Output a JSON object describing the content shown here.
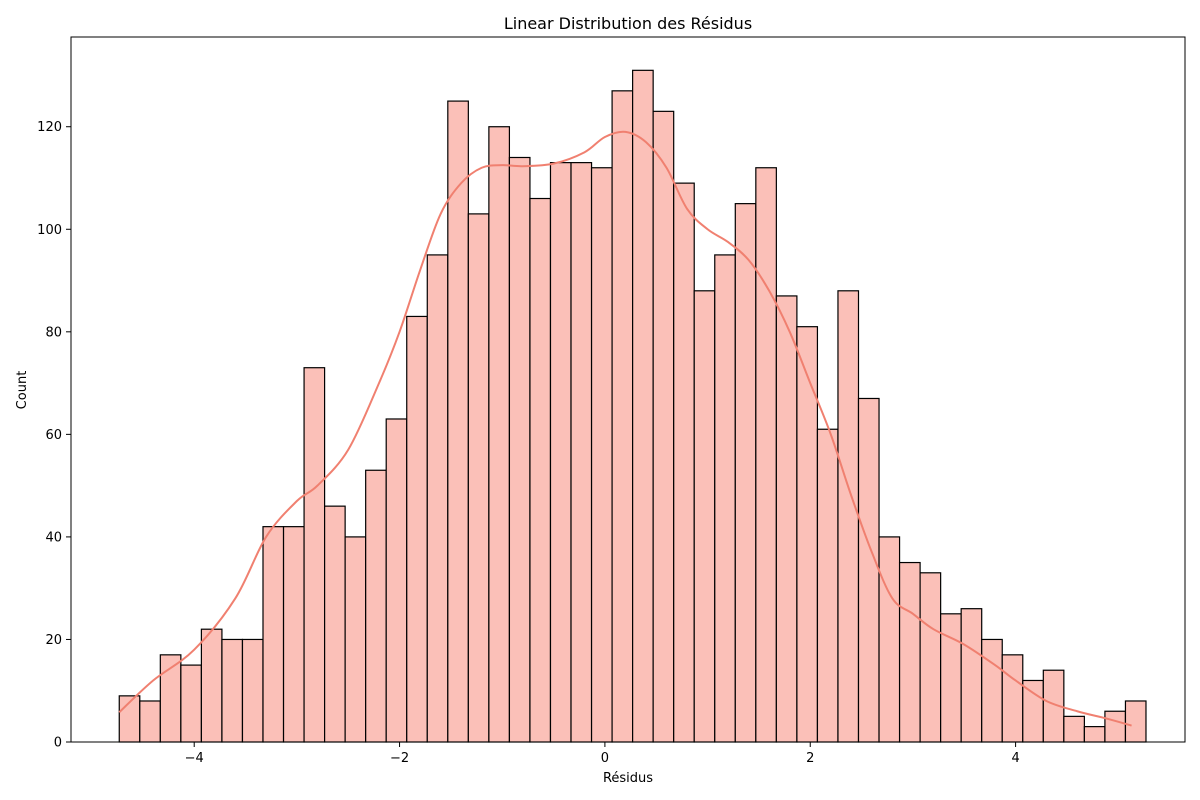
{
  "chart_data": {
    "type": "bar",
    "title": "Linear Distribution des Résidus",
    "xlabel": "Résidus",
    "ylabel": "Count",
    "xlim": [
      -5.2,
      5.65
    ],
    "ylim": [
      0,
      137.5
    ],
    "xticks": [
      -4,
      -2,
      0,
      2,
      4
    ],
    "xtick_labels": [
      "−4",
      "−2",
      "0",
      "2",
      "4"
    ],
    "yticks": [
      0,
      20,
      40,
      60,
      80,
      100,
      120
    ],
    "ytick_labels": [
      "0",
      "20",
      "40",
      "60",
      "80",
      "100",
      "120"
    ],
    "grid": false,
    "legend": "none",
    "bin_start": -4.73,
    "bin_width": 0.2,
    "values": [
      9,
      8,
      17,
      15,
      22,
      20,
      20,
      42,
      42,
      73,
      46,
      40,
      53,
      63,
      83,
      95,
      125,
      103,
      120,
      114,
      106,
      113,
      113,
      112,
      127,
      131,
      123,
      109,
      88,
      95,
      105,
      112,
      87,
      81,
      61,
      88,
      67,
      40,
      35,
      33,
      25,
      26,
      20,
      17,
      12,
      14,
      5,
      3,
      6,
      8
    ],
    "kde": {
      "x": [
        -4.73,
        -4.4,
        -4.0,
        -3.6,
        -3.3,
        -3.0,
        -2.8,
        -2.5,
        -2.2,
        -2.0,
        -1.8,
        -1.6,
        -1.4,
        -1.2,
        -1.0,
        -0.8,
        -0.5,
        -0.2,
        0.0,
        0.2,
        0.4,
        0.6,
        0.8,
        1.0,
        1.2,
        1.4,
        1.6,
        1.8,
        2.0,
        2.2,
        2.4,
        2.6,
        2.8,
        3.0,
        3.2,
        3.5,
        3.8,
        4.0,
        4.3,
        4.6,
        4.9,
        5.13
      ],
      "y": [
        5.8,
        12,
        18,
        28,
        40,
        47,
        50,
        57,
        70,
        80,
        92,
        103,
        109,
        112,
        112.5,
        112.3,
        112.8,
        115,
        118,
        119,
        117,
        112,
        104,
        100,
        97.5,
        94,
        88,
        80,
        70,
        60,
        48,
        37,
        28,
        25,
        22,
        19,
        15,
        12,
        8,
        6,
        4.5,
        3.2
      ]
    },
    "colors": {
      "bar_fill": "#fbc0b8",
      "bar_edge": "#000000",
      "kde_line": "#f08070"
    }
  }
}
